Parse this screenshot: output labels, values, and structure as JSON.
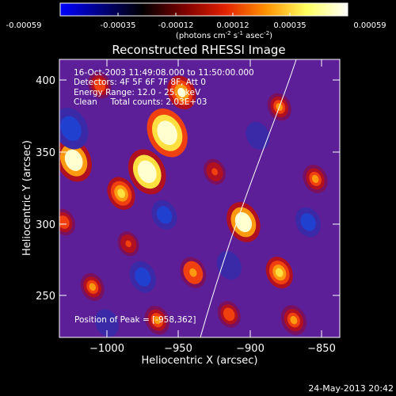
{
  "colorbar": {
    "ticks": [
      "-0.00059",
      "-0.00035",
      "-0.00012",
      "0.00012",
      "0.00035",
      "0.00059"
    ],
    "units_prefix": "(photons cm",
    "units_exp1": "-2",
    "units_mid": " s",
    "units_exp2": "-1",
    "units_mid2": " asec",
    "units_exp3": "-2",
    "units_suffix": ")",
    "stops": [
      "#0000ff",
      "#000080",
      "#000000",
      "#7a0000",
      "#e02000",
      "#ff9000",
      "#ffff60",
      "#ffffff"
    ]
  },
  "plot": {
    "title": "Reconstructed RHESSI Image",
    "xlabel": "Heliocentric X (arcsec)",
    "ylabel": "Heliocentric Y (arcsec)",
    "x_ticks": [
      "−1000",
      "−950",
      "−900",
      "−850"
    ],
    "y_ticks": [
      "400",
      "350",
      "300",
      "250"
    ],
    "info_lines": [
      "16-Oct-2003 11:49:08.000 to 11:50:00.000",
      "Detectors: 4F 5F 6F 7F 8F, Att 0",
      "Energy Range: 12.0 - 25.0 keV",
      "Clean     Total counts: 2.03E+03"
    ],
    "peak_label": "Position of Peak = [-958,362]"
  },
  "footer": {
    "date": "24-May-2013 20:42"
  },
  "chart_data": {
    "type": "heatmap",
    "title": "Reconstructed RHESSI Image",
    "xlabel": "Heliocentric X (arcsec)",
    "ylabel": "Heliocentric Y (arcsec)",
    "xlim": [
      -1033,
      -838
    ],
    "ylim": [
      220,
      413
    ],
    "zlim": [
      -0.00059,
      0.00059
    ],
    "peak": {
      "x": -958,
      "y": 362
    },
    "sources": [
      {
        "x": -958,
        "y": 362,
        "value": 0.00059
      },
      {
        "x": -972,
        "y": 335,
        "value": 0.00052
      },
      {
        "x": -1023,
        "y": 343,
        "value": 0.00048
      },
      {
        "x": -905,
        "y": 300,
        "value": 0.00042
      },
      {
        "x": -948,
        "y": 390,
        "value": 0.0003
      },
      {
        "x": -990,
        "y": 320,
        "value": 0.00028
      },
      {
        "x": -940,
        "y": 265,
        "value": 0.00024
      },
      {
        "x": -880,
        "y": 265,
        "value": 0.00026
      },
      {
        "x": -855,
        "y": 330,
        "value": 0.0002
      },
      {
        "x": -880,
        "y": 380,
        "value": 0.00018
      },
      {
        "x": -1005,
        "y": 395,
        "value": 0.00016
      },
      {
        "x": -1010,
        "y": 255,
        "value": 0.00018
      },
      {
        "x": -965,
        "y": 232,
        "value": 0.0002
      },
      {
        "x": -915,
        "y": 236,
        "value": 0.00016
      },
      {
        "x": -870,
        "y": 232,
        "value": 0.00022
      },
      {
        "x": -925,
        "y": 335,
        "value": 0.00014
      },
      {
        "x": -1030,
        "y": 300,
        "value": 0.00016
      },
      {
        "x": -985,
        "y": 285,
        "value": 0.00012
      },
      {
        "x": -1025,
        "y": 365,
        "value": -0.00045
      },
      {
        "x": -975,
        "y": 262,
        "value": -0.00025
      },
      {
        "x": -915,
        "y": 270,
        "value": -0.0002
      },
      {
        "x": -860,
        "y": 300,
        "value": -0.00022
      },
      {
        "x": -895,
        "y": 360,
        "value": -0.00018
      },
      {
        "x": -960,
        "y": 305,
        "value": -0.00022
      },
      {
        "x": -1000,
        "y": 230,
        "value": -0.00018
      }
    ]
  }
}
